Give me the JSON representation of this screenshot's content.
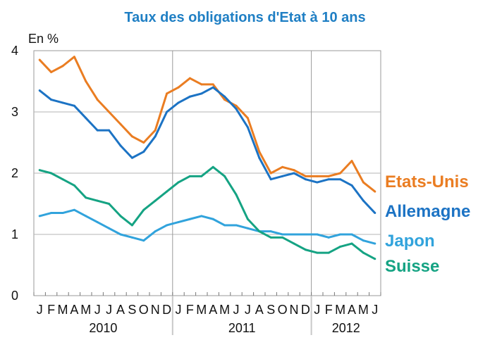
{
  "chart_data": {
    "type": "line",
    "title": "Taux des obligations d'Etat à 10 ans",
    "unit_label": "En %",
    "ylim": [
      0,
      4
    ],
    "y_ticks": [
      "0",
      "1",
      "2",
      "3",
      "4"
    ],
    "x_month_labels": [
      "J",
      "F",
      "M",
      "A",
      "M",
      "J",
      "J",
      "A",
      "S",
      "O",
      "N",
      "D",
      "J",
      "F",
      "M",
      "A",
      "M",
      "J",
      "J",
      "A",
      "S",
      "O",
      "N",
      "D",
      "J",
      "F",
      "M",
      "A",
      "M",
      "J"
    ],
    "years": [
      "2010",
      "2011",
      "2012"
    ],
    "grid": true,
    "series": [
      {
        "name": "Etats-Unis",
        "color": "#ea7d22",
        "values": [
          3.85,
          3.65,
          3.75,
          3.9,
          3.5,
          3.2,
          3.0,
          2.8,
          2.6,
          2.5,
          2.7,
          3.3,
          3.4,
          3.55,
          3.45,
          3.45,
          3.2,
          3.1,
          2.9,
          2.35,
          2.0,
          2.1,
          2.05,
          1.95,
          1.95,
          1.95,
          2.0,
          2.2,
          1.85,
          1.7
        ]
      },
      {
        "name": "Allemagne",
        "color": "#1c73c4",
        "values": [
          3.35,
          3.2,
          3.15,
          3.1,
          2.9,
          2.7,
          2.7,
          2.45,
          2.25,
          2.35,
          2.6,
          3.0,
          3.15,
          3.25,
          3.3,
          3.4,
          3.25,
          3.05,
          2.75,
          2.25,
          1.9,
          1.95,
          2.0,
          1.9,
          1.85,
          1.9,
          1.9,
          1.8,
          1.55,
          1.35
        ]
      },
      {
        "name": "Japon",
        "color": "#31a3dc",
        "values": [
          1.3,
          1.35,
          1.35,
          1.4,
          1.3,
          1.2,
          1.1,
          1.0,
          0.95,
          0.9,
          1.05,
          1.15,
          1.2,
          1.25,
          1.3,
          1.25,
          1.15,
          1.15,
          1.1,
          1.05,
          1.05,
          1.0,
          1.0,
          1.0,
          1.0,
          0.95,
          1.0,
          1.0,
          0.9,
          0.85
        ]
      },
      {
        "name": "Suisse",
        "color": "#15a383",
        "values": [
          2.05,
          2.0,
          1.9,
          1.8,
          1.6,
          1.55,
          1.5,
          1.3,
          1.15,
          1.4,
          1.55,
          1.7,
          1.85,
          1.95,
          1.95,
          2.1,
          1.95,
          1.65,
          1.25,
          1.05,
          0.95,
          0.95,
          0.85,
          0.75,
          0.7,
          0.7,
          0.8,
          0.85,
          0.7,
          0.6
        ]
      }
    ]
  }
}
